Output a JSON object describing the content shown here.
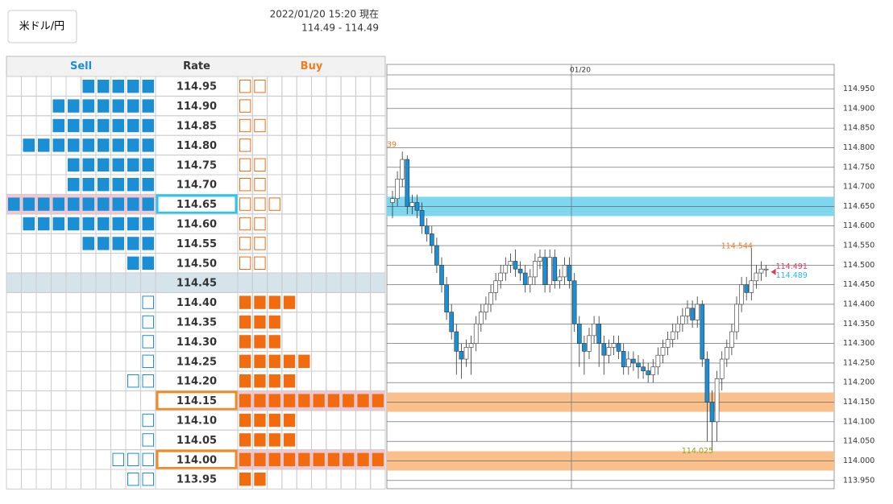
{
  "header": {
    "pair": "米ドル/円",
    "timestamp": "2022/01/20 15:20 現在",
    "quote": "114.49 - 114.49"
  },
  "book": {
    "columns": [
      "Sell",
      "Rate",
      "Buy"
    ],
    "rows": [
      {
        "rate": "114.95",
        "sell": 5,
        "buy": 2
      },
      {
        "rate": "114.90",
        "sell": 7,
        "buy": 1
      },
      {
        "rate": "114.85",
        "sell": 7,
        "buy": 2
      },
      {
        "rate": "114.80",
        "sell": 9,
        "buy": 1
      },
      {
        "rate": "114.75",
        "sell": 6,
        "buy": 2
      },
      {
        "rate": "114.70",
        "sell": 6,
        "buy": 2
      },
      {
        "rate": "114.65",
        "sell": 10,
        "buy": 3
      },
      {
        "rate": "114.60",
        "sell": 9,
        "buy": 2
      },
      {
        "rate": "114.55",
        "sell": 5,
        "buy": 2
      },
      {
        "rate": "114.50",
        "sell": 2,
        "buy": 2
      },
      {
        "rate": "114.45",
        "sell": 0,
        "buy": 0
      },
      {
        "rate": "114.40",
        "sell": 1,
        "buy": 4
      },
      {
        "rate": "114.35",
        "sell": 1,
        "buy": 3
      },
      {
        "rate": "114.30",
        "sell": 1,
        "buy": 3
      },
      {
        "rate": "114.25",
        "sell": 1,
        "buy": 5
      },
      {
        "rate": "114.20",
        "sell": 2,
        "buy": 4
      },
      {
        "rate": "114.15",
        "sell": 0,
        "buy": 10
      },
      {
        "rate": "114.10",
        "sell": 1,
        "buy": 4
      },
      {
        "rate": "114.05",
        "sell": 1,
        "buy": 4
      },
      {
        "rate": "114.00",
        "sell": 3,
        "buy": 10
      },
      {
        "rate": "113.95",
        "sell": 2,
        "buy": 2
      }
    ],
    "current_row": 10,
    "sell_highlight": [
      6
    ],
    "buy_highlight": [
      16,
      19
    ]
  },
  "chart_data": {
    "type": "candlestick",
    "date": "01/20",
    "open": [
      114.66,
      114.67,
      114.72,
      114.77,
      114.65,
      114.66,
      114.64,
      114.6,
      114.58,
      114.55,
      114.5,
      114.45,
      114.38,
      114.33,
      114.28,
      114.26,
      114.29,
      114.3,
      114.35,
      114.38,
      114.4,
      114.43,
      114.46,
      114.48,
      114.5,
      114.51,
      114.49,
      114.48,
      114.45,
      114.47,
      114.51,
      114.52,
      114.45,
      114.52,
      114.46,
      114.47,
      114.5,
      114.46,
      114.35,
      114.3,
      114.28,
      114.32,
      114.35,
      114.3,
      114.27,
      114.29,
      114.3,
      114.28,
      114.24,
      114.26,
      114.25,
      114.24,
      114.23,
      114.22,
      114.24,
      114.27,
      114.29,
      114.31,
      114.33,
      114.35,
      114.37,
      114.39,
      114.36,
      114.4,
      114.26,
      114.15,
      114.1,
      114.21,
      114.26,
      114.29,
      114.33,
      114.4,
      114.45,
      114.43,
      114.46,
      114.48,
      114.49
    ],
    "high": [
      114.69,
      114.74,
      114.79,
      114.78,
      114.68,
      114.68,
      114.66,
      114.62,
      114.6,
      114.57,
      114.52,
      114.47,
      114.4,
      114.35,
      114.3,
      114.31,
      114.32,
      114.37,
      114.4,
      114.42,
      114.45,
      114.48,
      114.5,
      114.52,
      114.53,
      114.54,
      114.51,
      114.5,
      114.49,
      114.53,
      114.54,
      114.54,
      114.54,
      114.54,
      114.49,
      114.52,
      114.52,
      114.48,
      114.37,
      114.32,
      114.34,
      114.37,
      114.37,
      114.32,
      114.31,
      114.32,
      114.32,
      114.3,
      114.28,
      114.28,
      114.27,
      114.26,
      114.25,
      114.26,
      114.29,
      114.31,
      114.33,
      114.35,
      114.37,
      114.39,
      114.41,
      114.41,
      114.42,
      114.41,
      114.28,
      114.18,
      114.23,
      114.28,
      114.31,
      114.35,
      114.42,
      114.47,
      114.47,
      114.544,
      114.5,
      114.51,
      114.5
    ],
    "low": [
      114.62,
      114.65,
      114.7,
      114.63,
      114.63,
      114.62,
      114.58,
      114.56,
      114.53,
      114.48,
      114.43,
      114.36,
      114.31,
      114.22,
      114.21,
      114.24,
      114.22,
      114.28,
      114.33,
      114.36,
      114.38,
      114.41,
      114.44,
      114.46,
      114.48,
      114.47,
      114.46,
      114.43,
      114.43,
      114.45,
      114.49,
      114.43,
      114.43,
      114.44,
      114.44,
      114.45,
      114.44,
      114.33,
      114.24,
      114.22,
      114.26,
      114.3,
      114.24,
      114.22,
      114.25,
      114.27,
      114.26,
      114.22,
      114.22,
      114.23,
      114.21,
      114.21,
      114.2,
      114.2,
      114.22,
      114.25,
      114.27,
      114.29,
      114.31,
      114.33,
      114.35,
      114.34,
      114.34,
      114.24,
      114.05,
      114.025,
      114.05,
      114.18,
      114.24,
      114.27,
      114.31,
      114.38,
      114.41,
      114.41,
      114.44,
      114.46,
      114.47
    ],
    "close": [
      114.67,
      114.72,
      114.77,
      114.65,
      114.66,
      114.64,
      114.6,
      114.58,
      114.55,
      114.5,
      114.45,
      114.38,
      114.33,
      114.28,
      114.26,
      114.29,
      114.3,
      114.35,
      114.38,
      114.4,
      114.43,
      114.46,
      114.48,
      114.5,
      114.51,
      114.49,
      114.48,
      114.45,
      114.47,
      114.51,
      114.52,
      114.45,
      114.52,
      114.46,
      114.47,
      114.5,
      114.46,
      114.35,
      114.3,
      114.28,
      114.32,
      114.35,
      114.3,
      114.27,
      114.29,
      114.3,
      114.28,
      114.24,
      114.26,
      114.25,
      114.24,
      114.23,
      114.22,
      114.24,
      114.27,
      114.29,
      114.31,
      114.33,
      114.35,
      114.37,
      114.39,
      114.36,
      114.4,
      114.26,
      114.15,
      114.1,
      114.21,
      114.26,
      114.29,
      114.33,
      114.4,
      114.45,
      114.43,
      114.46,
      114.48,
      114.49,
      114.49
    ],
    "up_color": "#ffffff",
    "down_color": "#1a8fd6",
    "ylim": [
      113.929,
      114.986
    ],
    "yticks": [
      {
        "value": 114.95,
        "label": "114.950"
      },
      {
        "value": 114.9,
        "label": "114.900"
      },
      {
        "value": 114.85,
        "label": "114.850"
      },
      {
        "value": 114.8,
        "label": "114.800"
      },
      {
        "value": 114.75,
        "label": "114.750"
      },
      {
        "value": 114.7,
        "label": "114.700"
      },
      {
        "value": 114.65,
        "label": "114.650"
      },
      {
        "value": 114.6,
        "label": "114.600"
      },
      {
        "value": 114.55,
        "label": "114.550"
      },
      {
        "value": 114.5,
        "label": "114.500"
      },
      {
        "value": 114.45,
        "label": "114.450"
      },
      {
        "value": 114.4,
        "label": "114.400"
      },
      {
        "value": 114.35,
        "label": "114.350"
      },
      {
        "value": 114.3,
        "label": "114.300"
      },
      {
        "value": 114.25,
        "label": "114.250"
      },
      {
        "value": 114.2,
        "label": "114.200"
      },
      {
        "value": 114.15,
        "label": "114.150"
      },
      {
        "value": 114.1,
        "label": "114.100"
      },
      {
        "value": 114.05,
        "label": "114.050"
      },
      {
        "value": 114,
        "label": "114.000"
      },
      {
        "value": 113.95,
        "label": "113.950"
      }
    ],
    "grid": true,
    "bands": [
      {
        "value": 114.65,
        "color": "#7fd6ef"
      },
      {
        "value": 114.15,
        "color": "#f9c08c"
      },
      {
        "value": 114,
        "color": "#f9c08c"
      }
    ],
    "annotations": [
      {
        "text": "114.544",
        "value": 114.544,
        "color": "#f07d1f"
      },
      {
        "text": "114.025",
        "value": 114.025,
        "color": "#8aaa1e"
      },
      {
        "text": "114.491",
        "value": 114.491,
        "color": "#e8365c"
      },
      {
        "text": "114.489",
        "value": 114.489,
        "color": "#29b6e0"
      }
    ],
    "clipped_label": {
      "text": "39",
      "color": "#f07d1f"
    }
  }
}
